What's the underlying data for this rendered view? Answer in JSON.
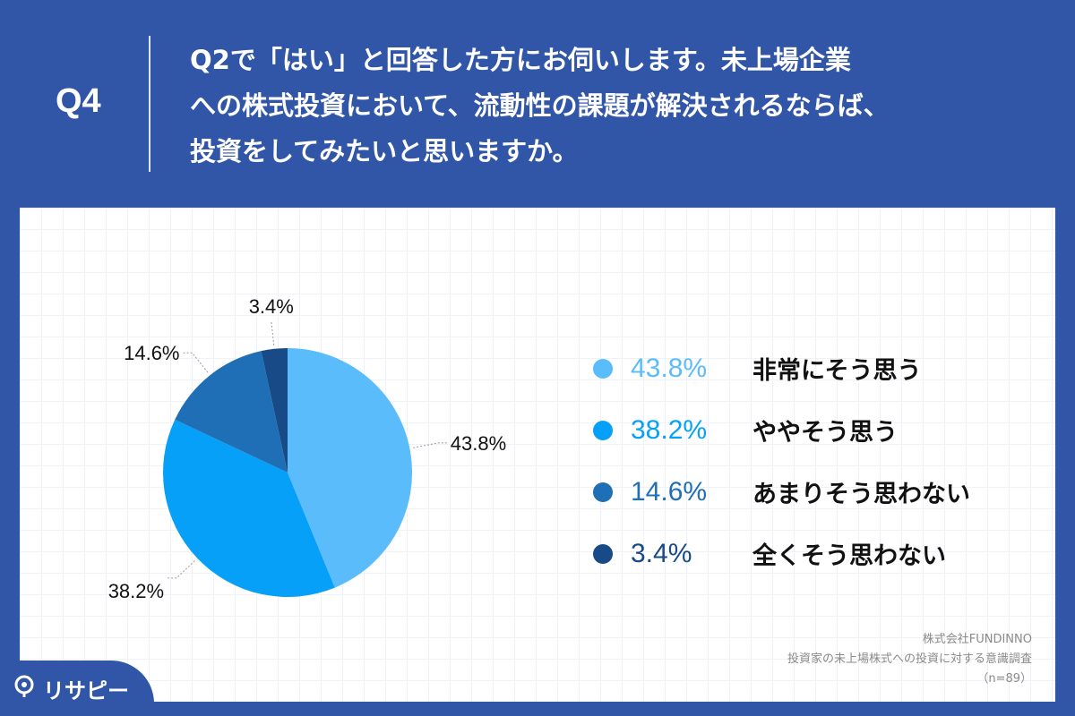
{
  "header": {
    "question_number": "Q4",
    "question_lines": [
      "Q2で「はい」と回答した方にお伺いします。未上場企業",
      "への株式投資において、流動性の課題が解決されるならば、",
      "投資をしてみたいと思いますか。"
    ]
  },
  "chart_data": {
    "type": "pie",
    "title": "",
    "slices": [
      {
        "label": "非常にそう思う",
        "value": 43.8,
        "value_label": "43.8%",
        "color": "#5bbcfb"
      },
      {
        "label": "ややそう思う",
        "value": 38.2,
        "value_label": "38.2%",
        "color": "#06a0f8"
      },
      {
        "label": "あまりそう思わない",
        "value": 14.6,
        "value_label": "14.6%",
        "color": "#1f6fb6"
      },
      {
        "label": "全くそう思わない",
        "value": 3.4,
        "value_label": "3.4%",
        "color": "#174a86"
      }
    ],
    "legend_position": "right",
    "start": "top",
    "direction": "clockwise"
  },
  "source": {
    "company": "株式会社FUNDINNO",
    "survey": "投資家の未上場株式への投資に対する意識調査",
    "sample": "（n=89）"
  },
  "brand": {
    "name": "リサピー",
    "icon": "location-pin-icon"
  }
}
